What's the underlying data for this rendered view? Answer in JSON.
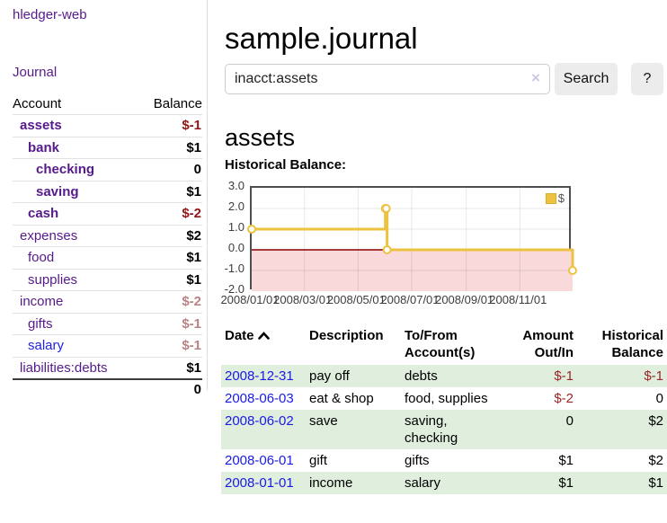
{
  "brand": "hledger-web",
  "nav": {
    "journal": "Journal"
  },
  "sidebar": {
    "col_account": "Account",
    "col_balance": "Balance",
    "accounts": [
      {
        "name": "assets",
        "indent": 1,
        "bold": true,
        "balance": "$-1",
        "neg": "strong",
        "unvisited": false
      },
      {
        "name": "bank",
        "indent": 2,
        "bold": true,
        "balance": "$1",
        "neg": "",
        "unvisited": false
      },
      {
        "name": "checking",
        "indent": 3,
        "bold": true,
        "balance": "0",
        "neg": "",
        "unvisited": false
      },
      {
        "name": "saving",
        "indent": 3,
        "bold": true,
        "balance": "$1",
        "neg": "",
        "unvisited": false
      },
      {
        "name": "cash",
        "indent": 2,
        "bold": true,
        "balance": "$-2",
        "neg": "strong",
        "unvisited": false
      },
      {
        "name": "expenses",
        "indent": 1,
        "bold": false,
        "balance": "$2",
        "neg": "",
        "unvisited": false
      },
      {
        "name": "food",
        "indent": 2,
        "bold": false,
        "balance": "$1",
        "neg": "",
        "unvisited": false
      },
      {
        "name": "supplies",
        "indent": 2,
        "bold": false,
        "balance": "$1",
        "neg": "",
        "unvisited": false
      },
      {
        "name": "income",
        "indent": 1,
        "bold": false,
        "balance": "$-2",
        "neg": "soft",
        "unvisited": false
      },
      {
        "name": "gifts",
        "indent": 2,
        "bold": false,
        "balance": "$-1",
        "neg": "soft",
        "unvisited": false
      },
      {
        "name": "salary",
        "indent": 2,
        "bold": false,
        "balance": "$-1",
        "neg": "soft",
        "unvisited": true
      },
      {
        "name": "liabilities:debts",
        "indent": 1,
        "bold": false,
        "balance": "$1",
        "neg": "",
        "unvisited": false
      }
    ],
    "total": "0"
  },
  "header": {
    "title": "sample.journal"
  },
  "search": {
    "value": "inacct:assets",
    "clear_icon": "×",
    "button_label": "Search",
    "help_label": "?"
  },
  "account_view": {
    "heading": "assets",
    "chart_title": "Historical Balance:"
  },
  "chart_data": {
    "type": "line",
    "style": "step",
    "title": "Historical Balance:",
    "legend": [
      {
        "label": "$",
        "color": "#edc240"
      }
    ],
    "x_range_days": 365,
    "x_ticks": [
      {
        "day": 0,
        "label": "2008/01/01"
      },
      {
        "day": 60,
        "label": "2008/03/01"
      },
      {
        "day": 121,
        "label": "2008/05/01"
      },
      {
        "day": 182,
        "label": "2008/07/01"
      },
      {
        "day": 244,
        "label": "2008/09/01"
      },
      {
        "day": 305,
        "label": "2008/11/01"
      }
    ],
    "ylim": [
      -2,
      3
    ],
    "y_ticks": [
      "3.0",
      "2.0",
      "1.0",
      "0.0",
      "-1.0",
      "-2.0"
    ],
    "series": [
      {
        "name": "$",
        "points": [
          {
            "date": "2008-01-01",
            "day": 0,
            "value": 1
          },
          {
            "date": "2008-06-01",
            "day": 152,
            "value": 2
          },
          {
            "date": "2008-06-02",
            "day": 153,
            "value": 2
          },
          {
            "date": "2008-06-03",
            "day": 154,
            "value": 0
          },
          {
            "date": "2008-12-31",
            "day": 365,
            "value": -1
          }
        ]
      }
    ],
    "line_color": "#edc240",
    "zero_line_color": "#8b0000",
    "negative_region_color": "#f9d9d9",
    "grid": true,
    "legend_position": "top-right"
  },
  "register": {
    "headers": {
      "date": "Date",
      "description": "Description",
      "tofrom": "To/From\nAccount(s)",
      "amount": "Amount\nOut/In",
      "balance": "Historical\nBalance"
    },
    "rows": [
      {
        "date": "2008-12-31",
        "description": "pay off",
        "accounts": "debts",
        "amount": "$-1",
        "balance": "$-1",
        "shaded": true
      },
      {
        "date": "2008-06-03",
        "description": "eat & shop",
        "accounts": "food, supplies",
        "amount": "$-2",
        "balance": "0",
        "shaded": false
      },
      {
        "date": "2008-06-02",
        "description": "save",
        "accounts": "saving,\nchecking",
        "amount": "0",
        "balance": "$2",
        "shaded": true
      },
      {
        "date": "2008-06-01",
        "description": "gift",
        "accounts": "gifts",
        "amount": "$1",
        "balance": "$2",
        "shaded": false
      },
      {
        "date": "2008-01-01",
        "description": "income",
        "accounts": "salary",
        "amount": "$1",
        "balance": "$1",
        "shaded": true
      }
    ]
  }
}
